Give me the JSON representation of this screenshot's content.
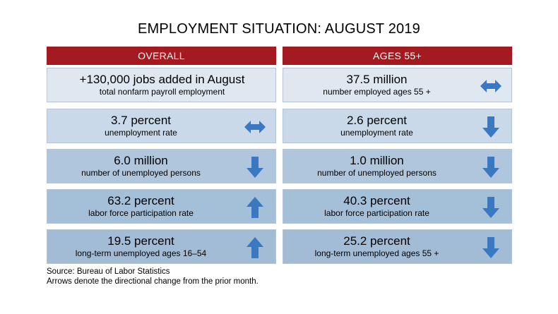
{
  "title": "EMPLOYMENT SITUATION: AUGUST 2019",
  "colors": {
    "header": "#a31b20",
    "arrow": "#3a78c2"
  },
  "left": {
    "header": "OVERALL",
    "rows": [
      {
        "value": "+130,000 jobs added in August",
        "label": "total nonfarm payroll employment",
        "arrow": "none"
      },
      {
        "value": "3.7 percent",
        "label": "unemployment rate",
        "arrow": "horizontal-double-arrow"
      },
      {
        "value": "6.0 million",
        "label": "number of unemployed persons",
        "arrow": "down-arrow"
      },
      {
        "value": "63.2 percent",
        "label": "labor force participation rate",
        "arrow": "up-arrow"
      },
      {
        "value": "19.5 percent",
        "label": "long-term unemployed ages 16–54",
        "arrow": "up-arrow"
      }
    ]
  },
  "right": {
    "header": "AGES 55+",
    "rows": [
      {
        "value": "37.5 million",
        "label": "number employed ages 55 +",
        "arrow": "horizontal-double-arrow"
      },
      {
        "value": "2.6 percent",
        "label": "unemployment rate",
        "arrow": "down-arrow"
      },
      {
        "value": "1.0 million",
        "label": "number of unemployed persons",
        "arrow": "down-arrow"
      },
      {
        "value": "40.3 percent",
        "label": "labor force participation rate",
        "arrow": "down-arrow"
      },
      {
        "value": "25.2 percent",
        "label": "long-term unemployed ages 55 +",
        "arrow": "down-arrow"
      }
    ]
  },
  "footer": {
    "source": "Source: Bureau of Labor Statistics",
    "note": "Arrows denote the directional change from the prior month."
  }
}
